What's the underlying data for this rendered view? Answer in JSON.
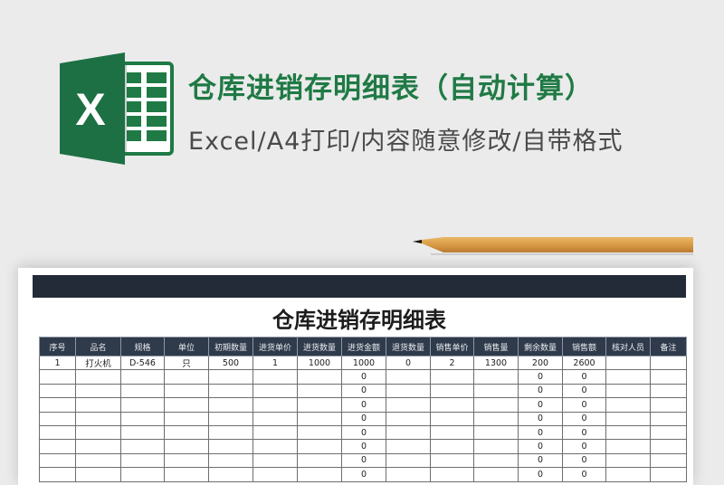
{
  "banner": {
    "title": "仓库进销存明细表（自动计算）",
    "subtitle": "Excel/A4打印/内容随意修改/自带格式",
    "logo_letter": "X",
    "brand_color": "#1f7a45"
  },
  "sheet": {
    "title": "仓库进销存明细表",
    "headers": [
      "序号",
      "品名",
      "规格",
      "单位",
      "初期数量",
      "进货单价",
      "进货数量",
      "进货金额",
      "退货数量",
      "销售单价",
      "销售量",
      "剩余数量",
      "销售额",
      "核对人员",
      "备注"
    ],
    "rows": [
      [
        "1",
        "打火机",
        "D-546",
        "只",
        "500",
        "1",
        "1000",
        "1000",
        "0",
        "2",
        "1300",
        "200",
        "2600",
        "",
        ""
      ],
      [
        "",
        "",
        "",
        "",
        "",
        "",
        "",
        "0",
        "",
        "",
        "",
        "0",
        "0",
        "",
        ""
      ],
      [
        "",
        "",
        "",
        "",
        "",
        "",
        "",
        "0",
        "",
        "",
        "",
        "0",
        "0",
        "",
        ""
      ],
      [
        "",
        "",
        "",
        "",
        "",
        "",
        "",
        "0",
        "",
        "",
        "",
        "0",
        "0",
        "",
        ""
      ],
      [
        "",
        "",
        "",
        "",
        "",
        "",
        "",
        "0",
        "",
        "",
        "",
        "0",
        "0",
        "",
        ""
      ],
      [
        "",
        "",
        "",
        "",
        "",
        "",
        "",
        "0",
        "",
        "",
        "",
        "0",
        "0",
        "",
        ""
      ],
      [
        "",
        "",
        "",
        "",
        "",
        "",
        "",
        "0",
        "",
        "",
        "",
        "0",
        "0",
        "",
        ""
      ],
      [
        "",
        "",
        "",
        "",
        "",
        "",
        "",
        "0",
        "",
        "",
        "",
        "0",
        "0",
        "",
        ""
      ],
      [
        "",
        "",
        "",
        "",
        "",
        "",
        "",
        "0",
        "",
        "",
        "",
        "0",
        "0",
        "",
        ""
      ]
    ]
  }
}
